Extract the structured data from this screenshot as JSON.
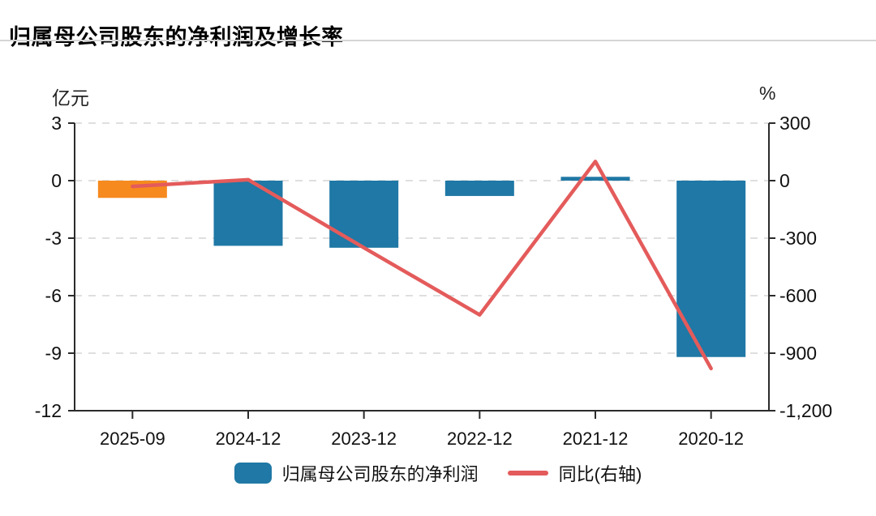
{
  "header": {
    "title": "归属母公司股东的净利润及增长率"
  },
  "chart_data": {
    "type": "combo-bar-line",
    "title": "归属母公司股东的净利润及增长率",
    "categories": [
      "2025-09",
      "2024-12",
      "2023-12",
      "2022-12",
      "2021-12",
      "2020-12"
    ],
    "series": [
      {
        "name": "归属母公司股东的净利润",
        "type": "bar",
        "yaxis": "left",
        "unit": "亿元",
        "values": [
          -0.9,
          -3.4,
          -3.5,
          -0.8,
          0.2,
          -9.2
        ],
        "colors": [
          "#F68A1E",
          "#1F78A5",
          "#1F78A5",
          "#1F78A5",
          "#1F78A5",
          "#1F78A5"
        ]
      },
      {
        "name": "同比(右轴)",
        "type": "line",
        "yaxis": "right",
        "unit": "%",
        "values": [
          -30,
          5,
          -350,
          -700,
          100,
          -980
        ],
        "color": "#E45B5B"
      }
    ],
    "left_axis": {
      "unit_label": "亿元",
      "min": -12,
      "max": 3,
      "ticks": [
        3,
        0,
        -3,
        -6,
        -9,
        -12
      ],
      "tick_labels": [
        "3",
        "0",
        "-3",
        "-6",
        "-9",
        "-12"
      ]
    },
    "right_axis": {
      "unit_label": "%",
      "min": -1200,
      "max": 300,
      "ticks": [
        300,
        0,
        -300,
        -600,
        -900,
        -1200
      ],
      "tick_labels": [
        "300",
        "0",
        "-300",
        "-600",
        "-900",
        "-1,200"
      ]
    },
    "grid": {
      "horizontal_dashed": true,
      "color": "#DFDFDF"
    },
    "legend_position": "bottom-center"
  },
  "legend": {
    "items": [
      {
        "label": "归属母公司股东的净利润",
        "swatch": "bar",
        "color": "#1F78A5"
      },
      {
        "label": "同比(右轴)",
        "swatch": "line",
        "color": "#E45B5B"
      }
    ]
  },
  "colors": {
    "bar_default": "#1F78A5",
    "bar_highlight": "#F68A1E",
    "line": "#E45B5B",
    "axis": "#2B2B2B",
    "grid": "#DFDFDF",
    "divider": "#D5D5D5",
    "text": "#111111"
  }
}
